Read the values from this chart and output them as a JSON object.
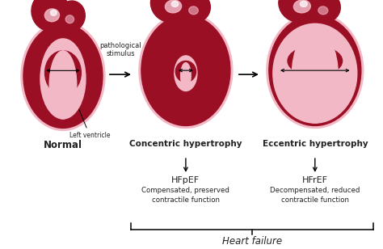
{
  "bg_color": "#ffffff",
  "heart_outer_color": "#f2b8c6",
  "heart_muscle_color": "#9b0f25",
  "heart_cavity_color": "#f2b8c6",
  "aorta_color": "#9b0f25",
  "aorta_highlight": "#f2b8c6",
  "arrow_color": "#222222",
  "text_color": "#222222",
  "labels": {
    "normal": "Normal",
    "concentric": "Concentric hypertrophy",
    "eccentric": "Eccentric hypertrophy",
    "pathological": "pathological\nstimulus",
    "left_ventricle": "Left ventricle",
    "hfpef": "HFpEF",
    "hfpef_sub": "Compensated, preserved\ncontractile function",
    "hfref": "HFrEF",
    "hfref_sub": "Decompensated, reduced\ncontractile function",
    "heart_failure": "Heart failure"
  }
}
